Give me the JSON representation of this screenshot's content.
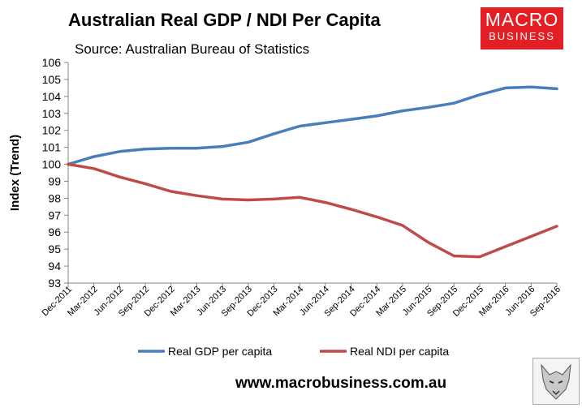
{
  "header": {
    "title": "Australian Real GDP / NDI Per Capita",
    "source": "Source: Australian Bureau of Statistics"
  },
  "logo": {
    "top": "MACRO",
    "bottom": "BUSINESS"
  },
  "footer": {
    "url": "www.macrobusiness.com.au"
  },
  "colors": {
    "gdp": "#4a7ebb",
    "ndi": "#be4b48",
    "logo": "#e31e24"
  },
  "chart_data": {
    "type": "line",
    "title": "Australian Real GDP / NDI Per Capita",
    "subtitle": "Source: Australian Bureau of Statistics",
    "xlabel": "",
    "ylabel": "Index (Trend)",
    "ylim": [
      93,
      106
    ],
    "yticks": [
      "93",
      "94",
      "95",
      "96",
      "97",
      "98",
      "99",
      "100",
      "101",
      "102",
      "103",
      "104",
      "105",
      "106"
    ],
    "grid": false,
    "legend": "bottom",
    "categories": [
      "Dec-2011",
      "Mar-2012",
      "Jun-2012",
      "Sep-2012",
      "Dec-2012",
      "Mar-2013",
      "Jun-2013",
      "Sep-2013",
      "Dec-2013",
      "Mar-2014",
      "Jun-2014",
      "Sep-2014",
      "Dec-2014",
      "Mar-2015",
      "Jun-2015",
      "Sep-2015",
      "Dec-2015",
      "Mar-2016",
      "Jun-2016",
      "Sep-2016"
    ],
    "series": [
      {
        "name": "Real GDP per capita",
        "color": "#4a7ebb",
        "values": [
          100.0,
          100.45,
          100.75,
          100.9,
          100.95,
          100.95,
          101.05,
          101.3,
          101.8,
          102.25,
          102.45,
          102.65,
          102.85,
          103.15,
          103.35,
          103.6,
          104.1,
          104.5,
          104.55,
          104.45
        ]
      },
      {
        "name": "Real NDI per capita",
        "color": "#be4b48",
        "values": [
          100.0,
          99.75,
          99.25,
          98.85,
          98.4,
          98.15,
          97.95,
          97.9,
          97.95,
          98.05,
          97.75,
          97.35,
          96.9,
          96.4,
          95.4,
          94.6,
          94.55,
          95.15,
          95.75,
          96.35
        ]
      }
    ]
  }
}
